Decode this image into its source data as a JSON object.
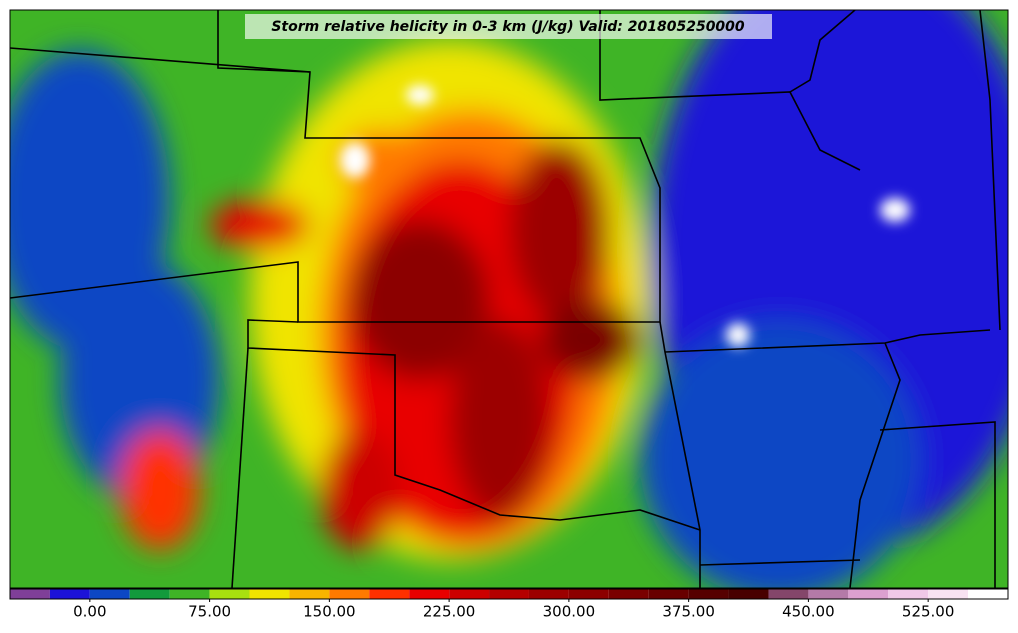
{
  "map": {
    "title": "Storm relative helicity in 0-3 km (J/kg) Valid: 201805250000",
    "colorbar": {
      "levels": [
        -50,
        -25,
        0,
        25,
        50,
        75,
        100,
        125,
        150,
        175,
        200,
        225,
        250,
        275,
        300,
        325,
        350,
        375,
        400,
        425,
        450,
        475,
        500,
        525,
        550,
        575
      ],
      "colors": [
        "#7f3f98",
        "#1c12d8",
        "#0c47c4",
        "#129a3c",
        "#3fb426",
        "#a8e010",
        "#f0e400",
        "#f8b400",
        "#ff7a00",
        "#ff3000",
        "#e80000",
        "#cc0000",
        "#b40000",
        "#9c0000",
        "#8c0000",
        "#7a0000",
        "#680000",
        "#560000",
        "#480000",
        "#84466a",
        "#b47aa8",
        "#dca0d0",
        "#f0c8e8",
        "#f8e2f2",
        "#ffffff"
      ],
      "ticks": [
        {
          "value": 0,
          "label": "0.00"
        },
        {
          "value": 75,
          "label": "75.00"
        },
        {
          "value": 150,
          "label": "150.00"
        },
        {
          "value": 225,
          "label": "225.00"
        },
        {
          "value": 300,
          "label": "300.00"
        },
        {
          "value": 375,
          "label": "375.00"
        },
        {
          "value": 450,
          "label": "450.00"
        },
        {
          "value": 525,
          "label": "525.00"
        }
      ]
    }
  }
}
